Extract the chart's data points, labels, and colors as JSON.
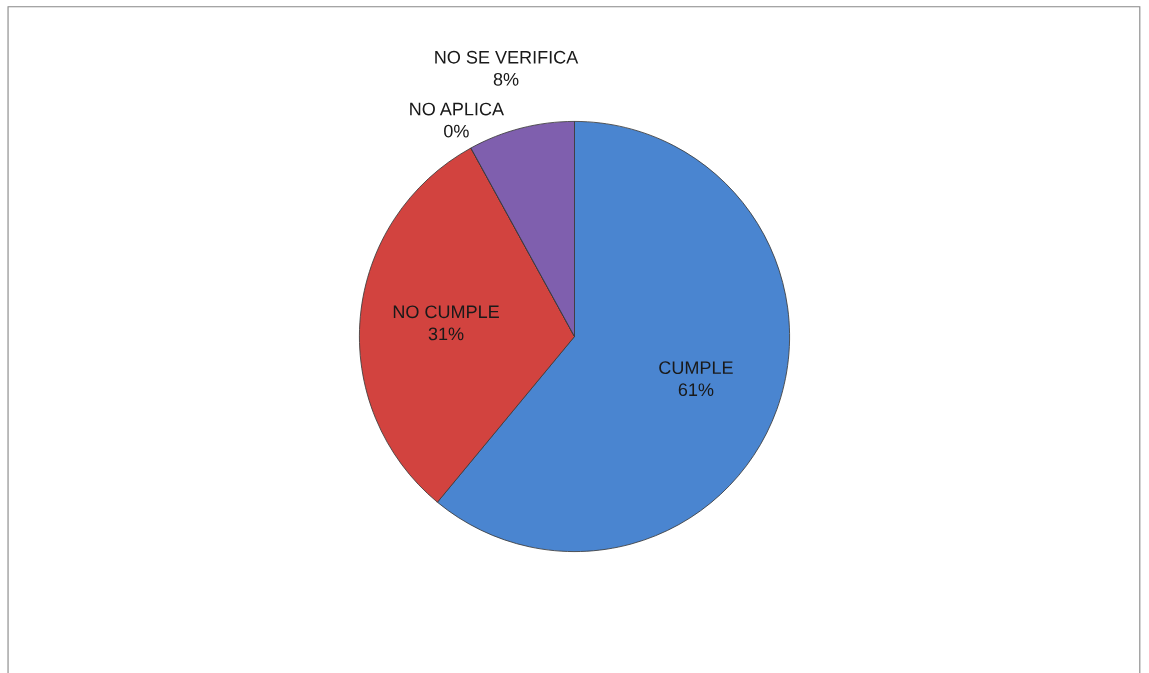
{
  "chart_data": {
    "type": "pie",
    "categories": [
      "CUMPLE",
      "NO CUMPLE",
      "NO APLICA",
      "NO SE VERIFICA"
    ],
    "values": [
      61,
      31,
      0,
      8
    ],
    "colors": [
      "#4a85d0",
      "#d2433f",
      "#9bbb59",
      "#7f5fae"
    ],
    "value_labels": [
      "61%",
      "31%",
      "0%",
      "8%"
    ]
  }
}
